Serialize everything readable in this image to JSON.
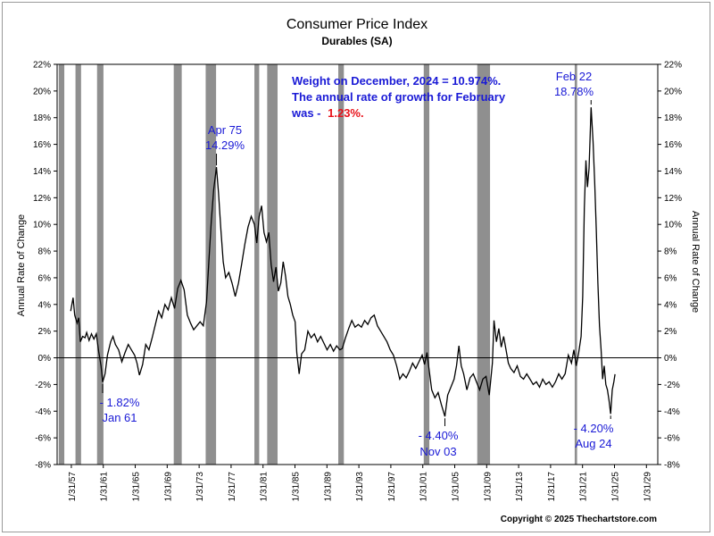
{
  "chart_data": {
    "type": "line",
    "title": "Consumer Price Index",
    "subtitle": "Durables (SA)",
    "ylabel_left": "Annual Rate of Change",
    "ylabel_right": "Annual Rate of Change",
    "ylim": [
      -8,
      22
    ],
    "yticks": [
      "22%",
      "20%",
      "18%",
      "16%",
      "14%",
      "12%",
      "10%",
      "8%",
      "6%",
      "4%",
      "2%",
      "0%",
      "-2%",
      "-4%",
      "-6%",
      "-8%"
    ],
    "xlim": [
      1955.3,
      2030.5
    ],
    "xticks": [
      {
        "label": "1/31/57",
        "year": 1957.08
      },
      {
        "label": "1/31/61",
        "year": 1961.08
      },
      {
        "label": "1/31/65",
        "year": 1965.08
      },
      {
        "label": "1/31/69",
        "year": 1969.08
      },
      {
        "label": "1/31/73",
        "year": 1973.08
      },
      {
        "label": "1/31/77",
        "year": 1977.08
      },
      {
        "label": "1/31/81",
        "year": 1981.08
      },
      {
        "label": "1/31/85",
        "year": 1985.08
      },
      {
        "label": "1/31/89",
        "year": 1989.08
      },
      {
        "label": "1/31/93",
        "year": 1993.08
      },
      {
        "label": "1/31/97",
        "year": 1997.08
      },
      {
        "label": "1/31/01",
        "year": 2001.08
      },
      {
        "label": "1/31/05",
        "year": 2005.08
      },
      {
        "label": "1/31/09",
        "year": 2009.08
      },
      {
        "label": "1/31/13",
        "year": 2013.08
      },
      {
        "label": "1/31/17",
        "year": 2017.08
      },
      {
        "label": "1/31/21",
        "year": 2021.08
      },
      {
        "label": "1/31/25",
        "year": 2025.08
      },
      {
        "label": "1/31/29",
        "year": 2029.08
      }
    ],
    "recessions": [
      [
        1955.5,
        1956.2
      ],
      [
        1957.6,
        1958.3
      ],
      [
        1960.3,
        1961.1
      ],
      [
        1969.9,
        1970.9
      ],
      [
        1973.9,
        1975.2
      ],
      [
        1980.0,
        1980.6
      ],
      [
        1981.6,
        1982.9
      ],
      [
        1990.5,
        1991.2
      ],
      [
        2001.2,
        2001.9
      ],
      [
        2007.9,
        2009.5
      ],
      [
        2020.1,
        2020.4
      ]
    ],
    "series": [
      {
        "values": [
          [
            1957.0,
            3.5
          ],
          [
            1957.3,
            4.5
          ],
          [
            1957.5,
            3.2
          ],
          [
            1957.8,
            2.6
          ],
          [
            1958.0,
            3.0
          ],
          [
            1958.2,
            1.2
          ],
          [
            1958.5,
            1.6
          ],
          [
            1958.8,
            1.5
          ],
          [
            1959.0,
            1.9
          ],
          [
            1959.3,
            1.3
          ],
          [
            1959.6,
            1.8
          ],
          [
            1959.9,
            1.4
          ],
          [
            1960.2,
            1.8
          ],
          [
            1960.5,
            0.5
          ],
          [
            1960.8,
            -0.6
          ],
          [
            1961.0,
            -1.82
          ],
          [
            1961.3,
            -1.2
          ],
          [
            1961.6,
            0.2
          ],
          [
            1962.0,
            1.2
          ],
          [
            1962.3,
            1.6
          ],
          [
            1962.6,
            1.0
          ],
          [
            1963.0,
            0.6
          ],
          [
            1963.4,
            -0.3
          ],
          [
            1963.8,
            0.4
          ],
          [
            1964.2,
            1.0
          ],
          [
            1964.6,
            0.6
          ],
          [
            1965.0,
            0.2
          ],
          [
            1965.3,
            -0.4
          ],
          [
            1965.6,
            -1.3
          ],
          [
            1966.0,
            -0.5
          ],
          [
            1966.4,
            1.0
          ],
          [
            1966.8,
            0.6
          ],
          [
            1967.2,
            1.5
          ],
          [
            1967.6,
            2.5
          ],
          [
            1968.0,
            3.5
          ],
          [
            1968.4,
            3.0
          ],
          [
            1968.8,
            4.0
          ],
          [
            1969.2,
            3.6
          ],
          [
            1969.6,
            4.5
          ],
          [
            1970.0,
            3.7
          ],
          [
            1970.4,
            5.2
          ],
          [
            1970.8,
            5.8
          ],
          [
            1971.2,
            5.1
          ],
          [
            1971.6,
            3.2
          ],
          [
            1972.0,
            2.6
          ],
          [
            1972.4,
            2.1
          ],
          [
            1972.8,
            2.4
          ],
          [
            1973.2,
            2.7
          ],
          [
            1973.6,
            2.4
          ],
          [
            1974.0,
            4.2
          ],
          [
            1974.3,
            7.2
          ],
          [
            1974.6,
            10.2
          ],
          [
            1974.9,
            12.6
          ],
          [
            1975.25,
            14.29
          ],
          [
            1975.5,
            12.4
          ],
          [
            1975.8,
            9.6
          ],
          [
            1976.1,
            7.2
          ],
          [
            1976.4,
            6.0
          ],
          [
            1976.8,
            6.4
          ],
          [
            1977.2,
            5.6
          ],
          [
            1977.6,
            4.6
          ],
          [
            1978.0,
            5.6
          ],
          [
            1978.4,
            7.0
          ],
          [
            1978.8,
            8.5
          ],
          [
            1979.2,
            9.8
          ],
          [
            1979.6,
            10.6
          ],
          [
            1980.0,
            10.0
          ],
          [
            1980.3,
            8.6
          ],
          [
            1980.6,
            10.6
          ],
          [
            1980.9,
            11.4
          ],
          [
            1981.2,
            9.4
          ],
          [
            1981.5,
            8.7
          ],
          [
            1981.8,
            9.4
          ],
          [
            1982.1,
            7.0
          ],
          [
            1982.4,
            5.7
          ],
          [
            1982.7,
            6.8
          ],
          [
            1983.0,
            5.0
          ],
          [
            1983.3,
            5.6
          ],
          [
            1983.6,
            7.2
          ],
          [
            1983.9,
            6.1
          ],
          [
            1984.2,
            4.6
          ],
          [
            1984.5,
            4.0
          ],
          [
            1984.8,
            3.2
          ],
          [
            1985.1,
            2.7
          ],
          [
            1985.3,
            0.4
          ],
          [
            1985.6,
            -1.2
          ],
          [
            1985.9,
            0.3
          ],
          [
            1986.3,
            0.6
          ],
          [
            1986.7,
            2.0
          ],
          [
            1987.1,
            1.5
          ],
          [
            1987.5,
            1.8
          ],
          [
            1987.9,
            1.2
          ],
          [
            1988.3,
            1.6
          ],
          [
            1988.7,
            1.1
          ],
          [
            1989.1,
            0.6
          ],
          [
            1989.5,
            1.0
          ],
          [
            1989.9,
            0.5
          ],
          [
            1990.3,
            0.9
          ],
          [
            1990.7,
            0.6
          ],
          [
            1991.0,
            0.7
          ],
          [
            1991.4,
            1.5
          ],
          [
            1991.8,
            2.2
          ],
          [
            1992.2,
            2.8
          ],
          [
            1992.6,
            2.3
          ],
          [
            1993.0,
            2.5
          ],
          [
            1993.4,
            2.3
          ],
          [
            1993.8,
            2.8
          ],
          [
            1994.2,
            2.5
          ],
          [
            1994.6,
            3.0
          ],
          [
            1995.0,
            3.2
          ],
          [
            1995.4,
            2.4
          ],
          [
            1995.8,
            2.0
          ],
          [
            1996.2,
            1.6
          ],
          [
            1996.6,
            1.2
          ],
          [
            1997.0,
            0.6
          ],
          [
            1997.4,
            0.2
          ],
          [
            1997.8,
            -0.6
          ],
          [
            1998.2,
            -1.6
          ],
          [
            1998.6,
            -1.2
          ],
          [
            1999.0,
            -1.5
          ],
          [
            1999.4,
            -1.0
          ],
          [
            1999.8,
            -0.4
          ],
          [
            2000.2,
            -0.8
          ],
          [
            2000.6,
            -0.3
          ],
          [
            2001.0,
            0.2
          ],
          [
            2001.3,
            -0.5
          ],
          [
            2001.6,
            0.4
          ],
          [
            2001.9,
            -1.0
          ],
          [
            2002.2,
            -2.4
          ],
          [
            2002.6,
            -3.0
          ],
          [
            2003.0,
            -2.6
          ],
          [
            2003.4,
            -3.5
          ],
          [
            2003.85,
            -4.4
          ],
          [
            2004.2,
            -2.8
          ],
          [
            2004.6,
            -2.2
          ],
          [
            2005.0,
            -1.6
          ],
          [
            2005.3,
            -0.6
          ],
          [
            2005.6,
            0.9
          ],
          [
            2005.9,
            -0.6
          ],
          [
            2006.2,
            -1.2
          ],
          [
            2006.6,
            -2.4
          ],
          [
            2007.0,
            -1.5
          ],
          [
            2007.4,
            -1.2
          ],
          [
            2007.8,
            -1.8
          ],
          [
            2008.2,
            -2.4
          ],
          [
            2008.6,
            -1.6
          ],
          [
            2009.0,
            -1.4
          ],
          [
            2009.4,
            -2.8
          ],
          [
            2009.8,
            -0.4
          ],
          [
            2010.0,
            2.8
          ],
          [
            2010.3,
            1.2
          ],
          [
            2010.6,
            2.2
          ],
          [
            2010.9,
            0.8
          ],
          [
            2011.2,
            1.6
          ],
          [
            2011.5,
            0.6
          ],
          [
            2011.8,
            -0.4
          ],
          [
            2012.1,
            -0.8
          ],
          [
            2012.5,
            -1.1
          ],
          [
            2012.9,
            -0.6
          ],
          [
            2013.3,
            -1.4
          ],
          [
            2013.7,
            -1.6
          ],
          [
            2014.1,
            -1.2
          ],
          [
            2014.5,
            -1.6
          ],
          [
            2014.9,
            -2.0
          ],
          [
            2015.3,
            -1.8
          ],
          [
            2015.7,
            -2.2
          ],
          [
            2016.1,
            -1.6
          ],
          [
            2016.5,
            -2.0
          ],
          [
            2016.9,
            -1.8
          ],
          [
            2017.3,
            -2.2
          ],
          [
            2017.7,
            -1.8
          ],
          [
            2018.1,
            -1.2
          ],
          [
            2018.5,
            -1.6
          ],
          [
            2018.9,
            -1.2
          ],
          [
            2019.3,
            0.2
          ],
          [
            2019.7,
            -0.4
          ],
          [
            2020.0,
            0.6
          ],
          [
            2020.3,
            -0.6
          ],
          [
            2020.6,
            0.4
          ],
          [
            2020.9,
            1.6
          ],
          [
            2021.1,
            4.6
          ],
          [
            2021.3,
            11.2
          ],
          [
            2021.5,
            14.8
          ],
          [
            2021.7,
            12.8
          ],
          [
            2021.9,
            14.2
          ],
          [
            2022.15,
            18.78
          ],
          [
            2022.4,
            16.2
          ],
          [
            2022.6,
            13.2
          ],
          [
            2022.8,
            9.6
          ],
          [
            2023.0,
            5.6
          ],
          [
            2023.2,
            2.4
          ],
          [
            2023.4,
            0.6
          ],
          [
            2023.6,
            -1.6
          ],
          [
            2023.8,
            -0.6
          ],
          [
            2024.0,
            -2.0
          ],
          [
            2024.2,
            -2.4
          ],
          [
            2024.4,
            -3.2
          ],
          [
            2024.6,
            -4.2
          ],
          [
            2024.8,
            -2.4
          ],
          [
            2025.0,
            -1.8
          ],
          [
            2025.15,
            -1.23
          ]
        ]
      }
    ],
    "annotations": {
      "weight_line1": "Weight on December, 2024 = 10.974%.",
      "weight_line2": "The annual rate of growth for February",
      "weight_line3_prefix": "was - ",
      "weight_line3_value": "1.23%.",
      "apr75_date": "Apr 75",
      "apr75_value": "14.29%",
      "feb22_date": "Feb 22",
      "feb22_value": "18.78%",
      "jan61_value": "- 1.82%",
      "jan61_date": "Jan 61",
      "nov03_value": "- 4.40%",
      "nov03_date": "Nov 03",
      "aug24_value": "- 4.20%",
      "aug24_date": "Aug 24"
    }
  },
  "footer": {
    "copyright": "Copyright © 2025 Thechartstore.com"
  }
}
